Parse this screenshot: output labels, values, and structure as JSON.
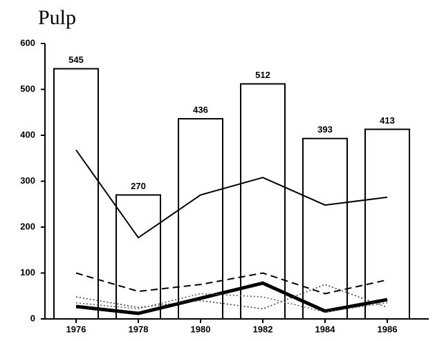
{
  "chart_data": {
    "type": "bar",
    "title": "Pulp",
    "categories": [
      "1976",
      "1978",
      "1980",
      "1982",
      "1984",
      "1986"
    ],
    "values": [
      545,
      270,
      436,
      512,
      393,
      413
    ],
    "color": "#ffffff",
    "ylim": [
      0,
      600
    ],
    "yticks": [
      0,
      100,
      200,
      300,
      400,
      500,
      600
    ],
    "grid": false,
    "series": [
      {
        "color": "#000000",
        "style": "solid",
        "width": 2,
        "values": [
          368,
          177,
          270,
          308,
          248,
          265
        ]
      },
      {
        "color": "#000000",
        "style": "dashed",
        "width": 2,
        "values": [
          100,
          60,
          75,
          100,
          55,
          85
        ]
      },
      {
        "color": "#000000",
        "style": "solid",
        "width": 5,
        "values": [
          27,
          12,
          45,
          78,
          17,
          42
        ]
      },
      {
        "color": "#333333",
        "style": "dotted",
        "width": 1.5,
        "values": [
          48,
          25,
          40,
          22,
          75,
          25
        ]
      },
      {
        "color": "#555555",
        "style": "dotted",
        "width": 1.5,
        "values": [
          35,
          22,
          55,
          48,
          15,
          35
        ]
      }
    ]
  }
}
